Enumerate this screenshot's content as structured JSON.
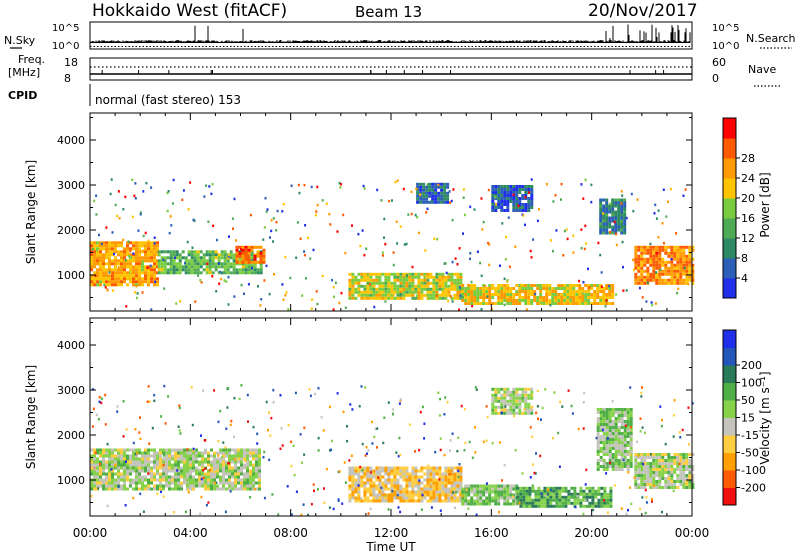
{
  "header": {
    "title": "Hokkaido West (fitACF)",
    "beam": "Beam 13",
    "date": "20/Nov/2017"
  },
  "top_panels": {
    "nsky_label": "N.Sky",
    "nsearch_label": "N.Search",
    "freq_label_line1": "Freq.",
    "freq_label_line2": "[MHz]",
    "nave_label": "Nave",
    "cpid_label": "CPID",
    "cpid_text": "normal (fast stereo) 153",
    "nsky_ticks": [
      "10^5",
      "10^0"
    ],
    "nsearch_ticks": [
      "10^5",
      "10^0"
    ],
    "freq_ticks": [
      "18",
      "8"
    ],
    "nave_ticks": [
      "60",
      "0"
    ]
  },
  "colors": {
    "power_scale": [
      "#1f2ee8",
      "#2b5fb8",
      "#2e8a63",
      "#4faa55",
      "#79cc3f",
      "#ffc400",
      "#ff9a00",
      "#ff5a00",
      "#ff0000"
    ],
    "velocity_scale": [
      "#ee1010",
      "#ff5a00",
      "#ffa000",
      "#ffcd40",
      "#c4c4bc",
      "#86d24a",
      "#4fae45",
      "#2a7a5a",
      "#2356b8",
      "#1f2ee8"
    ]
  },
  "chart_data": [
    {
      "type": "heatmap",
      "panel": "power",
      "ylabel": "Slant Range [km]",
      "yticks": [
        1000,
        2000,
        3000,
        4000
      ],
      "ylim": [
        200,
        4600
      ],
      "xlim_hours": [
        0,
        24
      ],
      "colorbar_label": "Power [dB]",
      "colorbar_ticks": [
        "4",
        "8",
        "12",
        "16",
        "20",
        "24",
        "28"
      ],
      "clim": [
        0,
        32
      ],
      "regions": [
        {
          "t0": 0.0,
          "t1": 2.7,
          "r0": 750,
          "r1": 1750,
          "value": 22
        },
        {
          "t0": 2.7,
          "t1": 6.8,
          "r0": 1050,
          "r1": 1550,
          "value": 14
        },
        {
          "t0": 5.8,
          "t1": 6.9,
          "r0": 1300,
          "r1": 1650,
          "value": 26
        },
        {
          "t0": 10.3,
          "t1": 14.8,
          "r0": 500,
          "r1": 1050,
          "value": 18
        },
        {
          "t0": 14.8,
          "t1": 20.8,
          "r0": 350,
          "r1": 800,
          "value": 20
        },
        {
          "t0": 21.7,
          "t1": 24.0,
          "r0": 800,
          "r1": 1650,
          "value": 24
        },
        {
          "t0": 13.0,
          "t1": 14.2,
          "r0": 2600,
          "r1": 3050,
          "value": 6
        },
        {
          "t0": 16.0,
          "t1": 17.6,
          "r0": 2400,
          "r1": 3000,
          "value": 5
        },
        {
          "t0": 20.3,
          "t1": 21.3,
          "r0": 1900,
          "r1": 2700,
          "value": 8
        }
      ]
    },
    {
      "type": "heatmap",
      "panel": "velocity",
      "ylabel": "Slant Range [km]",
      "yticks": [
        1000,
        2000,
        3000,
        4000
      ],
      "ylim": [
        200,
        4600
      ],
      "xlim_hours": [
        0,
        24
      ],
      "xticks": [
        "00:00",
        "04:00",
        "08:00",
        "12:00",
        "16:00",
        "20:00",
        "00:00"
      ],
      "xlabel": "Time UT",
      "colorbar_label": "Velocity [m s⁻¹]",
      "colorbar_ticks": [
        "-200",
        "-100",
        "-50",
        "-15",
        "15",
        "50",
        "100",
        "200"
      ],
      "clim": [
        -250,
        250
      ],
      "regions": [
        {
          "t0": 0.0,
          "t1": 6.8,
          "r0": 800,
          "r1": 1700,
          "value": 0
        },
        {
          "t0": 10.3,
          "t1": 14.8,
          "r0": 550,
          "r1": 1300,
          "value": -70
        },
        {
          "t0": 14.8,
          "t1": 17.0,
          "r0": 450,
          "r1": 900,
          "value": 30
        },
        {
          "t0": 17.0,
          "t1": 20.8,
          "r0": 400,
          "r1": 850,
          "value": 70
        },
        {
          "t0": 21.7,
          "t1": 24.0,
          "r0": 800,
          "r1": 1600,
          "value": 0
        },
        {
          "t0": 20.2,
          "t1": 21.6,
          "r0": 1200,
          "r1": 2600,
          "value": 30
        },
        {
          "t0": 16.0,
          "t1": 17.6,
          "r0": 2500,
          "r1": 3050,
          "value": 0
        }
      ]
    }
  ]
}
